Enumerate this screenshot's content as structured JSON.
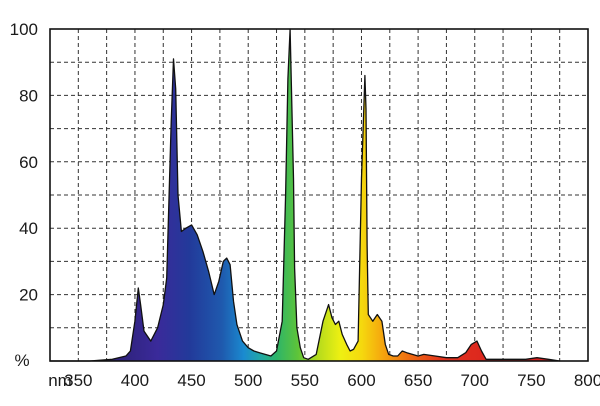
{
  "chart_data": {
    "type": "area",
    "title": "",
    "xlabel": "nm",
    "ylabel": "%",
    "xlim": [
      325,
      800
    ],
    "ylim": [
      0,
      100
    ],
    "x_ticks": [
      350,
      400,
      450,
      500,
      550,
      600,
      650,
      700,
      750,
      800
    ],
    "x_tick_labels": [
      "350",
      "400",
      "450",
      "500",
      "550",
      "600",
      "650",
      "700",
      "750",
      "800"
    ],
    "y_ticks": [
      20,
      40,
      60,
      80,
      100
    ],
    "y_tick_labels": [
      "20",
      "40",
      "60",
      "80",
      "100"
    ],
    "x_unit_label": "nm",
    "y_unit_label": "%",
    "grid": "dashed, every 25 nm and every 10 %",
    "fill": "visible spectrum color gradient",
    "series": [
      {
        "x": [
          325,
          360,
          380,
          392,
          396,
          400,
          403,
          405,
          408,
          414,
          420,
          425,
          428,
          430,
          432,
          434,
          436,
          438,
          441,
          445,
          450,
          455,
          460,
          465,
          470,
          474,
          478,
          481,
          484,
          487,
          490,
          495,
          500,
          505,
          510,
          515,
          520,
          525,
          530,
          533,
          535,
          537,
          540,
          541,
          543,
          546,
          549,
          553,
          560,
          566,
          571,
          574,
          577,
          580,
          583,
          587,
          590,
          593,
          597,
          600,
          603,
          604,
          605,
          606,
          608,
          610,
          612,
          614,
          618,
          621,
          624,
          628,
          632,
          636,
          640,
          645,
          650,
          655,
          665,
          675,
          685,
          692,
          697,
          702,
          706,
          710,
          715,
          722,
          735,
          745,
          755,
          765,
          775
        ],
        "y": [
          0,
          0,
          0.5,
          1.5,
          3,
          12,
          22,
          17,
          9,
          6,
          10,
          17,
          25,
          48,
          72,
          91,
          82,
          50,
          39,
          40,
          41,
          38,
          33,
          27,
          20,
          24,
          30,
          31,
          29,
          18,
          11,
          6,
          4,
          3,
          2.5,
          2,
          1.5,
          3,
          12,
          50,
          85,
          100,
          55,
          28,
          10,
          4,
          1,
          0.5,
          2,
          12,
          17,
          13,
          11,
          12,
          8,
          5,
          3,
          3.5,
          6,
          55,
          86,
          76,
          35,
          14,
          13,
          12,
          13,
          14,
          12,
          5,
          2,
          1.5,
          1.5,
          3,
          2.5,
          2,
          1.5,
          2,
          1.5,
          1,
          1,
          2.5,
          5,
          6,
          3,
          0.5,
          0.5,
          0.5,
          0.5,
          0.5,
          1,
          0.5,
          0
        ]
      }
    ]
  }
}
